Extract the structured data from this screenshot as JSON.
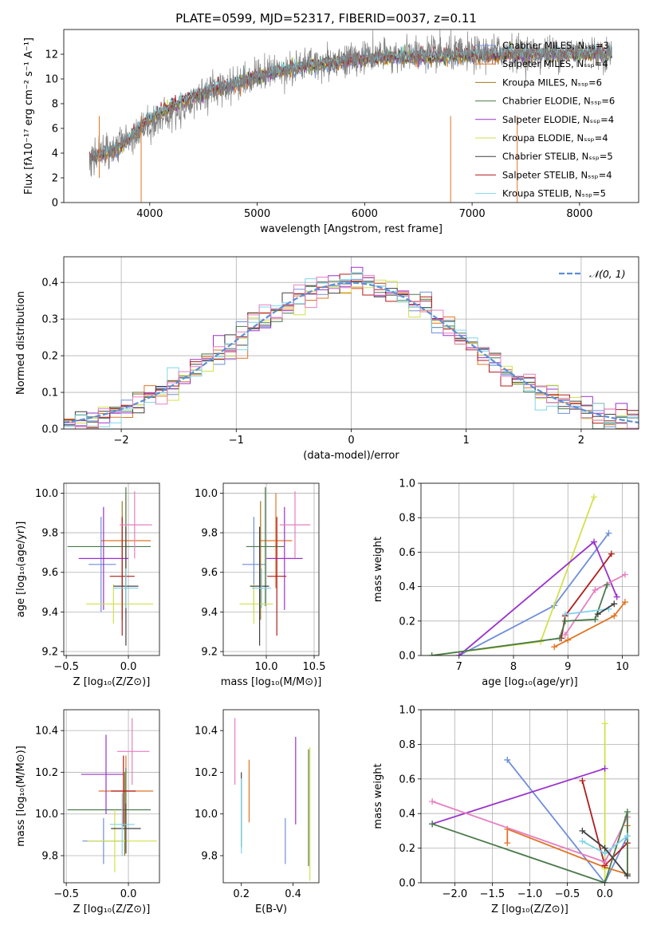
{
  "figure_title": "PLATE=0599, MJD=52317, FIBERID=0037, z=0.11",
  "colors": {
    "miles_chabrier": "#6f8fd9",
    "miles_salpeter": "#e07424",
    "miles_kroupa": "#a0781e",
    "elodie_chabrier": "#4a7a4a",
    "elodie_salpeter": "#9932cc",
    "elodie_kroupa": "#d2e14b",
    "stelib_chabrier": "#404040",
    "stelib_salpeter": "#b01c1c",
    "stelib_kroupa": "#7fd4e8",
    "pink": "#e67fc0",
    "observed": "#808080",
    "gaussian": "#5b8fd6"
  },
  "chart_data": [
    {
      "id": "spectrum",
      "type": "line",
      "title": "PLATE=0599, MJD=52317, FIBERID=0037, z=0.11",
      "xlabel": "wavelength [Angstrom, rest frame]",
      "ylabel": "Flux [fλ10⁻¹⁷ erg cm⁻² s⁻¹ A⁻¹]",
      "xlim": [
        3200,
        8550
      ],
      "ylim": [
        0,
        14
      ],
      "xticks": [
        4000,
        5000,
        6000,
        7000,
        8000
      ],
      "yticks": [
        0,
        2,
        4,
        6,
        8,
        10,
        12
      ],
      "grid": false,
      "legend_position": "top-right",
      "legend": [
        {
          "label": "Chabrier MILES, Nₛₛₚ=3",
          "color": "#6f8fd9"
        },
        {
          "label": "Salpeter MILES, Nₛₛₚ=4",
          "color": "#e07424"
        },
        {
          "label": "Kroupa MILES, Nₛₛₚ=6",
          "color": "#a0781e"
        },
        {
          "label": "Chabrier ELODIE, Nₛₛₚ=6",
          "color": "#4a7a4a"
        },
        {
          "label": "Salpeter ELODIE, Nₛₛₚ=4",
          "color": "#9932cc"
        },
        {
          "label": "Kroupa ELODIE, Nₛₛₚ=4",
          "color": "#d2e14b"
        },
        {
          "label": "Chabrier STELIB, Nₛₛₚ=5",
          "color": "#404040"
        },
        {
          "label": "Salpeter STELIB, Nₛₛₚ=4",
          "color": "#b01c1c"
        },
        {
          "label": "Kroupa STELIB, Nₛₛₚ=5",
          "color": "#7fd4e8"
        }
      ],
      "observed_anchor_x": [
        3440,
        3700,
        4000,
        4200,
        4500,
        4800,
        5000,
        5300,
        5600,
        6000,
        6300,
        6600,
        7000,
        7300,
        7600,
        8000,
        8300
      ],
      "observed_anchor_y": [
        3.5,
        4.6,
        6.4,
        7.1,
        8.8,
        9.7,
        10.3,
        10.9,
        11.3,
        11.8,
        11.9,
        12.1,
        12.0,
        12.3,
        12.0,
        12.3,
        12.0
      ],
      "model_anchor_x": [
        3440,
        3700,
        4000,
        4200,
        4500,
        4800,
        5000,
        5300,
        5600,
        6000,
        6300,
        6600,
        7000,
        7300
      ],
      "model_anchor_y": [
        3.6,
        4.3,
        6.8,
        7.8,
        8.9,
        9.6,
        10.2,
        10.8,
        11.2,
        11.6,
        11.8,
        11.8,
        11.9,
        12.0
      ]
    },
    {
      "id": "residual_hist",
      "type": "line",
      "xlabel": "(data-model)/error",
      "ylabel": "Normed distribution",
      "xlim": [
        -2.5,
        2.5
      ],
      "ylim": [
        0,
        0.47
      ],
      "xticks": [
        -2,
        -1,
        0,
        1,
        2
      ],
      "yticks": [
        0.0,
        0.1,
        0.2,
        0.3,
        0.4
      ],
      "grid": true,
      "legend_position": "top-right",
      "legend": [
        {
          "label": "𝒩(0, 1)",
          "color": "#5b8fd6"
        }
      ],
      "bin_width": 0.1
    },
    {
      "id": "age_vs_Z",
      "type": "scatter",
      "xlabel": "Z [log₁₀(Z/Z⊙)]",
      "ylabel": "age  [log₁₀(age/yr)]",
      "xlim": [
        -0.52,
        0.25
      ],
      "ylim": [
        9.18,
        10.05
      ],
      "xticks": [
        -0.5,
        0.0
      ],
      "yticks": [
        9.2,
        9.4,
        9.6,
        9.8,
        10.0
      ],
      "grid": true,
      "points": [
        {
          "x": -0.22,
          "y": 9.64,
          "xerr": [
            0.1,
            0.12
          ],
          "yerr": [
            0.24,
            0.24
          ],
          "color": "#6f8fd9"
        },
        {
          "x": -0.02,
          "y": 9.76,
          "xerr": [
            0.2,
            0.2
          ],
          "yerr": [
            0.24,
            0.24
          ],
          "color": "#e07424"
        },
        {
          "x": -0.05,
          "y": 9.66,
          "xerr": [
            0.0,
            0.0
          ],
          "yerr": [
            0.3,
            0.3
          ],
          "color": "#a0781e"
        },
        {
          "x": -0.02,
          "y": 9.73,
          "xerr": [
            0.47,
            0.2
          ],
          "yerr": [
            0.3,
            0.3
          ],
          "color": "#4a7a4a"
        },
        {
          "x": -0.2,
          "y": 9.67,
          "xerr": [
            0.2,
            0.2
          ],
          "yerr": [
            0.26,
            0.26
          ],
          "color": "#9932cc"
        },
        {
          "x": -0.12,
          "y": 9.44,
          "xerr": [
            0.22,
            0.32
          ],
          "yerr": [
            0.1,
            0.1
          ],
          "color": "#d2e14b"
        },
        {
          "x": -0.02,
          "y": 9.53,
          "xerr": [
            0.1,
            0.1
          ],
          "yerr": [
            0.3,
            0.3
          ],
          "color": "#404040"
        },
        {
          "x": -0.05,
          "y": 9.58,
          "xerr": [
            0.1,
            0.1
          ],
          "yerr": [
            0.3,
            0.3
          ],
          "color": "#b01c1c"
        },
        {
          "x": -0.02,
          "y": 9.52,
          "xerr": [
            0.1,
            0.1
          ],
          "yerr": [
            0.1,
            0.1
          ],
          "color": "#7fd4e8"
        },
        {
          "x": 0.05,
          "y": 9.84,
          "xerr": [
            0.12,
            0.14
          ],
          "yerr": [
            0.17,
            0.17
          ],
          "color": "#e67fc0"
        }
      ]
    },
    {
      "id": "age_vs_mass",
      "type": "scatter",
      "xlabel": "mass [log₁₀(M/M⊙)]",
      "ylabel": "",
      "xlim": [
        9.55,
        10.55
      ],
      "ylim": [
        9.18,
        10.05
      ],
      "xticks": [
        10.0,
        10.5
      ],
      "yticks": [
        9.2,
        9.4,
        9.6,
        9.8,
        10.0
      ],
      "grid": true,
      "points": [
        {
          "x": 9.87,
          "y": 9.64,
          "xerr": [
            0.12,
            0.12
          ],
          "yerr": [
            0.24,
            0.24
          ],
          "color": "#6f8fd9"
        },
        {
          "x": 10.1,
          "y": 9.76,
          "xerr": [
            0.17,
            0.17
          ],
          "yerr": [
            0.24,
            0.24
          ],
          "color": "#e07424"
        },
        {
          "x": 9.94,
          "y": 9.66,
          "xerr": [
            0.0,
            0.0
          ],
          "yerr": [
            0.3,
            0.3
          ],
          "color": "#a0781e"
        },
        {
          "x": 9.99,
          "y": 9.73,
          "xerr": [
            0.2,
            0.2
          ],
          "yerr": [
            0.3,
            0.3
          ],
          "color": "#4a7a4a"
        },
        {
          "x": 10.19,
          "y": 9.67,
          "xerr": [
            0.19,
            0.19
          ],
          "yerr": [
            0.26,
            0.26
          ],
          "color": "#9932cc"
        },
        {
          "x": 9.87,
          "y": 9.44,
          "xerr": [
            0.15,
            0.2
          ],
          "yerr": [
            0.1,
            0.1
          ],
          "color": "#d2e14b"
        },
        {
          "x": 9.93,
          "y": 9.53,
          "xerr": [
            0.1,
            0.1
          ],
          "yerr": [
            0.3,
            0.3
          ],
          "color": "#404040"
        },
        {
          "x": 10.11,
          "y": 9.58,
          "xerr": [
            0.1,
            0.1
          ],
          "yerr": [
            0.3,
            0.3
          ],
          "color": "#b01c1c"
        },
        {
          "x": 9.95,
          "y": 9.52,
          "xerr": [
            0.1,
            0.1
          ],
          "yerr": [
            0.1,
            0.1
          ],
          "color": "#7fd4e8"
        },
        {
          "x": 10.3,
          "y": 9.84,
          "xerr": [
            0.16,
            0.16
          ],
          "yerr": [
            0.17,
            0.17
          ],
          "color": "#e67fc0"
        }
      ]
    },
    {
      "id": "weight_vs_age",
      "type": "line",
      "xlabel": "age  [log₁₀(age/yr)]",
      "ylabel": "mass weight",
      "xlim": [
        6.3,
        10.3
      ],
      "ylim": [
        0,
        1.0
      ],
      "xticks": [
        7,
        8,
        9,
        10
      ],
      "yticks": [
        0.0,
        0.2,
        0.4,
        0.6,
        0.8,
        1.0
      ],
      "grid": true,
      "series": [
        {
          "color": "#6f8fd9",
          "x": [
            7.0,
            8.75,
            9.75
          ],
          "y": [
            0.0,
            0.29,
            0.71
          ]
        },
        {
          "color": "#e07424",
          "x": [
            8.75,
            9.0,
            9.85,
            10.05
          ],
          "y": [
            0.05,
            0.09,
            0.23,
            0.31
          ]
        },
        {
          "color": "#d2e14b",
          "x": [
            6.5,
            8.5,
            9.48
          ],
          "y": [
            0.0,
            0.08,
            0.92
          ]
        },
        {
          "color": "#9932cc",
          "x": [
            7.0,
            9.48,
            9.9
          ],
          "y": [
            0.0,
            0.66,
            0.34
          ]
        },
        {
          "color": "#b01c1c",
          "x": [
            8.88,
            8.95,
            9.8
          ],
          "y": [
            0.1,
            0.23,
            0.59
          ]
        },
        {
          "color": "#e67fc0",
          "x": [
            8.95,
            9.5,
            10.05
          ],
          "y": [
            0.12,
            0.38,
            0.47
          ]
        },
        {
          "color": "#4a7a4a",
          "x": [
            6.5,
            8.85,
            8.95,
            9.5,
            9.72
          ],
          "y": [
            0.0,
            0.1,
            0.2,
            0.21,
            0.41
          ]
        },
        {
          "color": "#7fd4e8",
          "x": [
            8.95,
            9.75
          ],
          "y": [
            0.24,
            0.27
          ]
        },
        {
          "color": "#404040",
          "x": [
            9.55,
            9.85
          ],
          "y": [
            0.24,
            0.3
          ]
        }
      ]
    },
    {
      "id": "mass_vs_Z",
      "type": "scatter",
      "xlabel": "Z [log₁₀(Z/Z⊙)]",
      "ylabel": "mass [log₁₀(M/M⊙)]",
      "xlim": [
        -0.52,
        0.25
      ],
      "ylim": [
        9.67,
        10.5
      ],
      "xticks": [
        -0.5,
        0.0
      ],
      "yticks": [
        9.8,
        10.0,
        10.2,
        10.4
      ],
      "grid": true,
      "points": [
        {
          "x": -0.2,
          "y": 9.87,
          "xerr": [
            0.17,
            0.17
          ],
          "yerr": [
            0.11,
            0.11
          ],
          "color": "#6f8fd9"
        },
        {
          "x": -0.02,
          "y": 10.11,
          "xerr": [
            0.22,
            0.22
          ],
          "yerr": [
            0.17,
            0.17
          ],
          "color": "#e07424"
        },
        {
          "x": -0.03,
          "y": 10.0,
          "xerr": [
            0.0,
            0.0
          ],
          "yerr": [
            0.2,
            0.2
          ],
          "color": "#a0781e"
        },
        {
          "x": -0.02,
          "y": 10.02,
          "xerr": [
            0.47,
            0.2
          ],
          "yerr": [
            0.2,
            0.2
          ],
          "color": "#4a7a4a"
        },
        {
          "x": -0.18,
          "y": 10.19,
          "xerr": [
            0.2,
            0.14
          ],
          "yerr": [
            0.19,
            0.19
          ],
          "color": "#9932cc"
        },
        {
          "x": -0.11,
          "y": 9.87,
          "xerr": [
            0.22,
            0.34
          ],
          "yerr": [
            0.15,
            0.15
          ],
          "color": "#d2e14b"
        },
        {
          "x": -0.02,
          "y": 9.93,
          "xerr": [
            0.12,
            0.12
          ],
          "yerr": [
            0.12,
            0.12
          ],
          "color": "#404040"
        },
        {
          "x": -0.04,
          "y": 10.11,
          "xerr": [
            0.1,
            0.1
          ],
          "yerr": [
            0.17,
            0.17
          ],
          "color": "#b01c1c"
        },
        {
          "x": -0.05,
          "y": 9.95,
          "xerr": [
            0.1,
            0.1
          ],
          "yerr": [
            0.15,
            0.15
          ],
          "color": "#7fd4e8"
        },
        {
          "x": 0.03,
          "y": 10.3,
          "xerr": [
            0.12,
            0.14
          ],
          "yerr": [
            0.16,
            0.16
          ],
          "color": "#e67fc0"
        }
      ]
    },
    {
      "id": "mass_vs_ebv",
      "type": "scatter",
      "xlabel": "E(B-V)",
      "ylabel": "",
      "xlim": [
        0.13,
        0.5
      ],
      "ylim": [
        9.67,
        10.5
      ],
      "xticks": [
        0.2,
        0.4
      ],
      "yticks": [
        9.8,
        10.0,
        10.2,
        10.4
      ],
      "grid": false,
      "points": [
        {
          "x": 0.37,
          "y": 9.87,
          "xerr": [
            0,
            0
          ],
          "yerr": [
            0.11,
            0.11
          ],
          "color": "#6f8fd9"
        },
        {
          "x": 0.23,
          "y": 10.11,
          "xerr": [
            0,
            0
          ],
          "yerr": [
            0.15,
            0.15
          ],
          "color": "#e07424"
        },
        {
          "x": 0.2,
          "y": 10.02,
          "xerr": [
            0,
            0
          ],
          "yerr": [
            0.18,
            0.18
          ],
          "color": "#404040"
        },
        {
          "x": 0.41,
          "y": 10.16,
          "xerr": [
            0,
            0
          ],
          "yerr": [
            0.21,
            0.21
          ],
          "color": "#9932cc"
        },
        {
          "x": 0.465,
          "y": 10.0,
          "xerr": [
            0,
            0
          ],
          "yerr": [
            0.32,
            0.32
          ],
          "color": "#d2e14b"
        },
        {
          "x": 0.46,
          "y": 10.03,
          "xerr": [
            0,
            0
          ],
          "yerr": [
            0.28,
            0.28
          ],
          "color": "#4a7a4a"
        },
        {
          "x": 0.2,
          "y": 9.99,
          "xerr": [
            0,
            0
          ],
          "yerr": [
            0.18,
            0.18
          ],
          "color": "#7fd4e8"
        },
        {
          "x": 0.175,
          "y": 10.3,
          "xerr": [
            0,
            0
          ],
          "yerr": [
            0.16,
            0.16
          ],
          "color": "#e67fc0"
        }
      ]
    },
    {
      "id": "weight_vs_Z",
      "type": "line",
      "xlabel": "Z [log₁₀(Z/Z⊙)]",
      "ylabel": "mass weight",
      "xlim": [
        -2.45,
        0.45
      ],
      "ylim": [
        0,
        1.0
      ],
      "xticks": [
        -2.0,
        -1.5,
        -1.0,
        -0.5,
        0.0
      ],
      "yticks": [
        0.0,
        0.2,
        0.4,
        0.6,
        0.8,
        1.0
      ],
      "grid": true,
      "series": [
        {
          "color": "#6f8fd9",
          "x": [
            -1.3,
            0.0,
            0.3
          ],
          "y": [
            0.71,
            0.0,
            0.27
          ]
        },
        {
          "color": "#e07424",
          "x": [
            -1.3,
            -1.3,
            0.0,
            0.3,
            0.3
          ],
          "y": [
            0.23,
            0.31,
            0.09,
            0.05,
            0.33
          ]
        },
        {
          "color": "#d2e14b",
          "x": [
            0.0,
            0.0,
            0.0
          ],
          "y": [
            0.92,
            0.0,
            0.08
          ]
        },
        {
          "color": "#9932cc",
          "x": [
            -2.3,
            0.0
          ],
          "y": [
            0.34,
            0.66
          ]
        },
        {
          "color": "#b01c1c",
          "x": [
            -0.3,
            0.0,
            0.3
          ],
          "y": [
            0.59,
            0.1,
            0.23
          ]
        },
        {
          "color": "#e67fc0",
          "x": [
            -2.3,
            0.0,
            0.3
          ],
          "y": [
            0.47,
            0.12,
            0.38
          ]
        },
        {
          "color": "#4a7a4a",
          "x": [
            -2.3,
            0.0,
            0.3,
            0.3
          ],
          "y": [
            0.34,
            0.0,
            0.41,
            0.05
          ]
        },
        {
          "color": "#7fd4e8",
          "x": [
            -0.3,
            0.0,
            0.3
          ],
          "y": [
            0.24,
            0.17,
            0.27
          ]
        },
        {
          "color": "#404040",
          "x": [
            -0.3,
            0.0,
            0.3
          ],
          "y": [
            0.3,
            0.2,
            0.04
          ]
        }
      ]
    }
  ]
}
